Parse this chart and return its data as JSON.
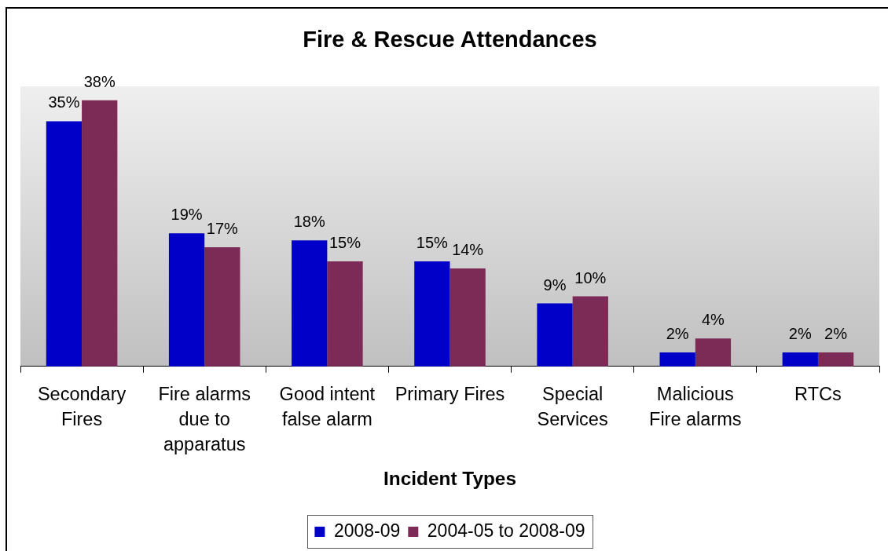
{
  "chart_data": {
    "type": "bar",
    "title": "Fire & Rescue Attendances",
    "xlabel": "Incident Types",
    "categories": [
      "Secondary Fires",
      "Fire alarms due to apparatus",
      "Good intent false alarm",
      "Primary Fires",
      "Special Services",
      "Malicious Fire alarms",
      "RTCs"
    ],
    "series": [
      {
        "name": "2008-09",
        "color": "#0000c8",
        "values": [
          35,
          19,
          18,
          15,
          9,
          2,
          2
        ],
        "value_labels": [
          "35%",
          "19%",
          "18%",
          "15%",
          "9%",
          "2%",
          "2%"
        ]
      },
      {
        "name": "2004-05 to 2008-09",
        "color": "#7c2a56",
        "values": [
          38,
          17,
          15,
          14,
          10,
          4,
          2
        ],
        "value_labels": [
          "38%",
          "17%",
          "15%",
          "14%",
          "10%",
          "4%",
          "2%"
        ]
      }
    ],
    "legend": "bottom"
  }
}
